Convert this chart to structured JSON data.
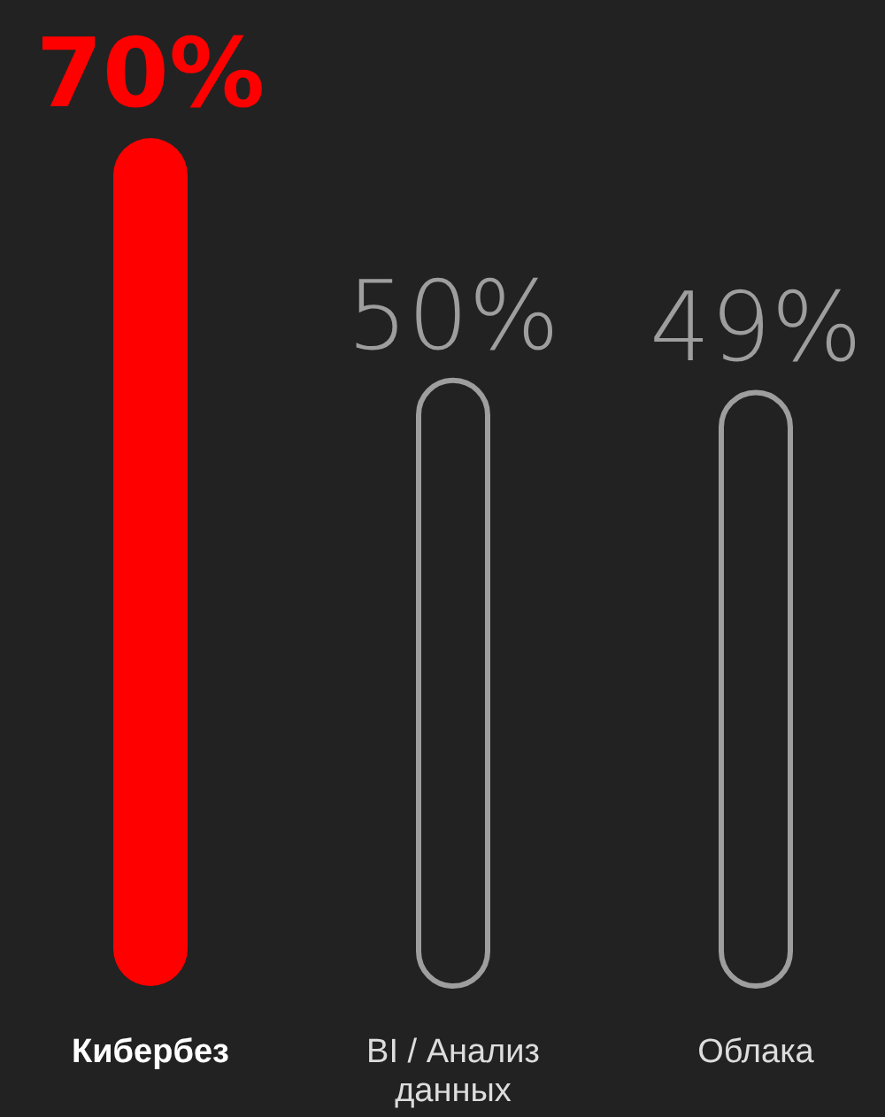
{
  "chart_data": {
    "type": "bar",
    "categories": [
      "Кибербез",
      "BI / Анализ данных",
      "Облака"
    ],
    "values": [
      70,
      50,
      49
    ],
    "value_labels": [
      "70%",
      "50%",
      "49%"
    ],
    "colors": [
      "#ff0000",
      "#9e9e9e",
      "#9e9e9e"
    ]
  }
}
